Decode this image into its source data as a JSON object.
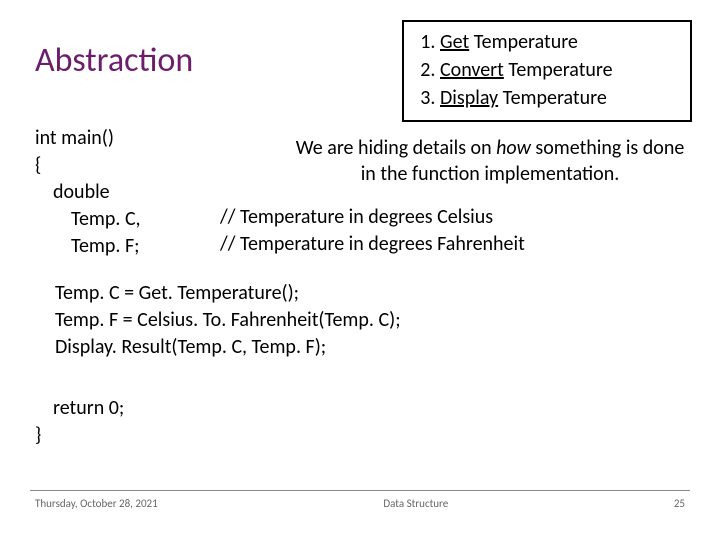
{
  "title": "Abstraction",
  "steps": {
    "items": [
      {
        "underlined": "Get",
        "rest": " Temperature"
      },
      {
        "underlined": "Convert",
        "rest": " Temperature"
      },
      {
        "underlined": "Display",
        "rest": " Temperature"
      }
    ]
  },
  "code": {
    "line1": "int main()",
    "line2": "{",
    "line3": "double",
    "line4": "Temp. C,",
    "line5": "Temp. F;"
  },
  "note": {
    "part1": "We are hiding details on ",
    "emph": "how",
    "part2": " something is done in the function implementation."
  },
  "comments": {
    "c1": "// Temperature in degrees Celsius",
    "c2": "// Temperature in degrees Fahrenheit"
  },
  "code2": {
    "l1": "Temp. C = Get. Temperature();",
    "l2": "Temp. F = Celsius. To. Fahrenheit(Temp. C);",
    "l3": "Display. Result(Temp. C, Temp. F);"
  },
  "code3": {
    "l1": "return 0;",
    "l2": "}"
  },
  "footer": {
    "date": "Thursday, October 28, 2021",
    "center": "Data Structure",
    "page": "25"
  },
  "colors": {
    "title": "#6b1f6b",
    "text": "#000000",
    "footer": "#666666",
    "background": "#ffffff",
    "border": "#000000"
  },
  "fonts": {
    "title_size": 34,
    "body_size": 20,
    "footer_size": 11
  }
}
